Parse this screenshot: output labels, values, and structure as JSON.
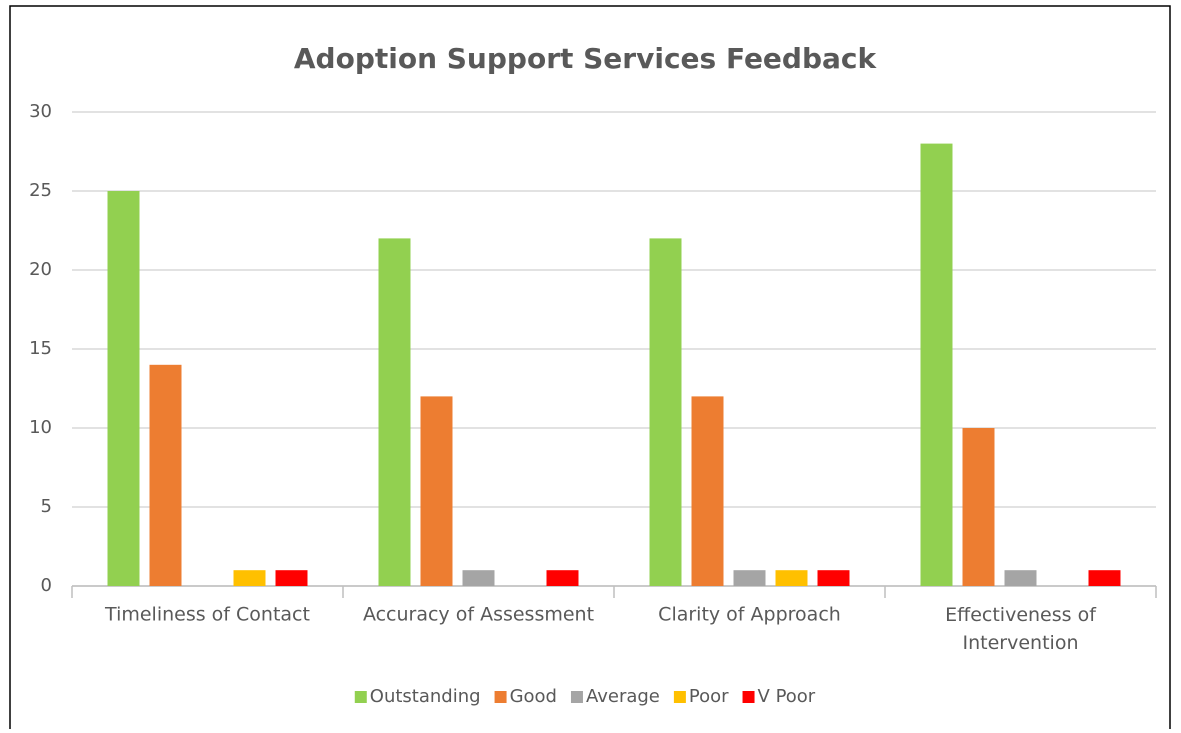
{
  "chart_data": {
    "type": "bar",
    "title": "Adoption Support Services Feedback",
    "categories": [
      "Timeliness of Contact",
      "Accuracy of Assessment",
      "Clarity of Approach",
      "Effectiveness of Intervention"
    ],
    "series": [
      {
        "name": "Outstanding",
        "color": "#92d050",
        "values": [
          25,
          22,
          22,
          28
        ]
      },
      {
        "name": "Good",
        "color": "#ed7d31",
        "values": [
          14,
          12,
          12,
          10
        ]
      },
      {
        "name": "Average",
        "color": "#a5a5a5",
        "values": [
          0,
          1,
          1,
          1
        ]
      },
      {
        "name": "Poor",
        "color": "#ffc000",
        "values": [
          1,
          0,
          1,
          0
        ]
      },
      {
        "name": "V Poor",
        "color": "#ff0000",
        "values": [
          1,
          1,
          1,
          1
        ]
      }
    ],
    "ylim": [
      0,
      30
    ],
    "yticks": [
      0,
      5,
      10,
      15,
      20,
      25,
      30
    ],
    "grid": true,
    "legend": "bottom"
  }
}
